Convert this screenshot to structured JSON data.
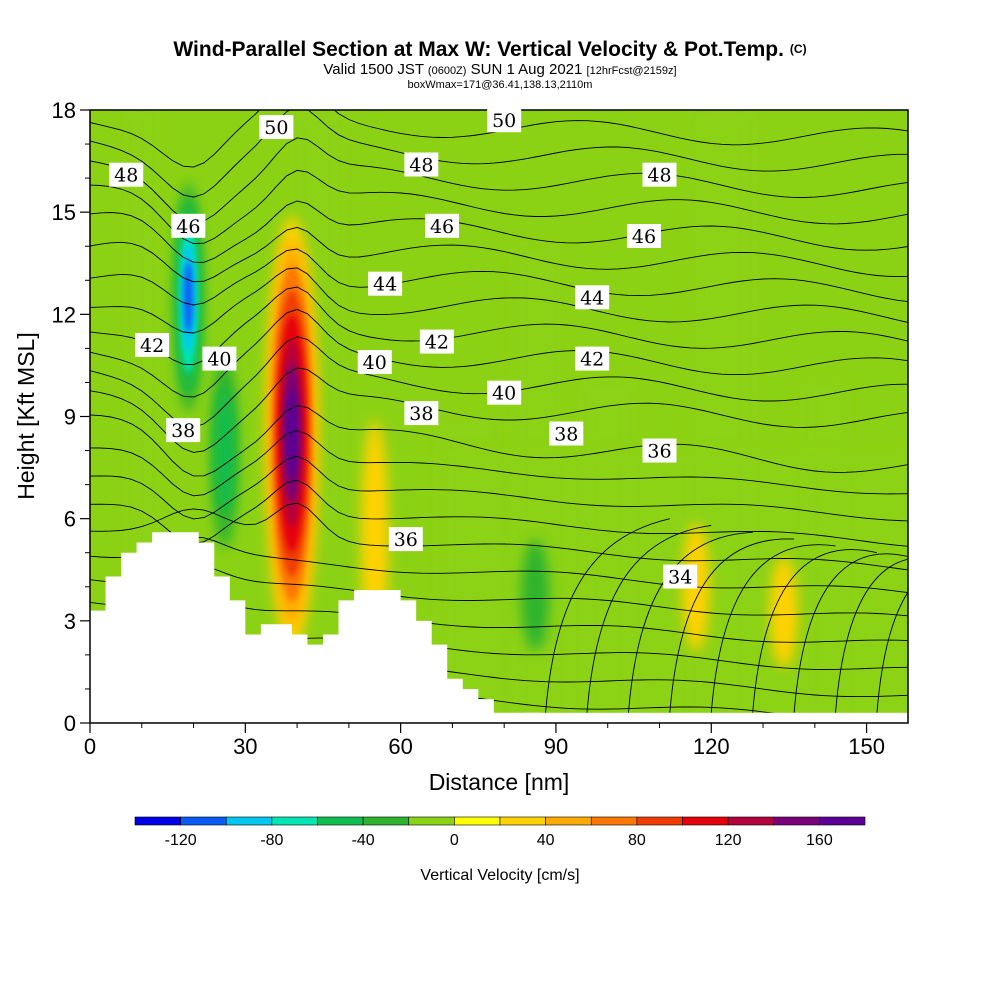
{
  "chart_data": {
    "type": "heatmap",
    "title": "Wind-Parallel Section at Max W: Vertical Velocity & Pot.Temp.",
    "title_mark": "(C)",
    "subtitle_parts": [
      "Valid 1500 JST",
      "(0600Z)",
      "SUN 1 Aug 2021",
      "[12hrFcst@2159z]"
    ],
    "subtitle2": "boxWmax=171@36.41,138.13,2110m",
    "xlabel": "Distance [nm]",
    "ylabel": "Height [Kft MSL]",
    "xlim": [
      0,
      158
    ],
    "ylim": [
      0,
      18
    ],
    "x_ticks": [
      0,
      30,
      60,
      90,
      120,
      150
    ],
    "y_ticks": [
      0,
      3,
      6,
      9,
      12,
      15,
      18
    ],
    "colorbar": {
      "label": "Vertical Velocity [cm/s]",
      "tick_values": [
        -120,
        -80,
        -40,
        0,
        40,
        80,
        120,
        160
      ],
      "bounds": [
        -140,
        -120,
        -100,
        -80,
        -60,
        -40,
        -20,
        0,
        20,
        40,
        60,
        80,
        100,
        120,
        140,
        160,
        180
      ],
      "colors": [
        "#0000e6",
        "#0a5af5",
        "#00c8f0",
        "#00e6b4",
        "#10be50",
        "#2db42d",
        "#8cd214",
        "#ffff00",
        "#ffd200",
        "#ffaa00",
        "#ff7800",
        "#f03c00",
        "#e6000a",
        "#b4003c",
        "#780078",
        "#5a0096"
      ]
    },
    "background_level": "0 to 20",
    "velocity_features": [
      {
        "name": "downdraft",
        "center_x": 19,
        "center_y_range": [
          10,
          15
        ],
        "peak": -120
      },
      {
        "name": "secondary downdraft",
        "center_x": 26,
        "center_y_range": [
          6,
          10
        ],
        "peak": -60
      },
      {
        "name": "main updraft",
        "center_x": 39,
        "center_y_range": [
          3,
          14
        ],
        "peak": 171
      },
      {
        "name": "updraft shoulder",
        "center_x": 55,
        "center_y_range": [
          3,
          8
        ],
        "peak": 40
      },
      {
        "name": "weak sink",
        "center_x": 86,
        "center_y_range": [
          3,
          4.5
        ],
        "peak": -40
      },
      {
        "name": "weak lift",
        "center_x": 117,
        "center_y_range": [
          3,
          5
        ],
        "peak": 40
      },
      {
        "name": "weak lift",
        "center_x": 134,
        "center_y_range": [
          2.5,
          4
        ],
        "peak": 40
      }
    ],
    "theta_contours": {
      "levels_labeled": [
        34,
        36,
        38,
        40,
        42,
        44,
        46,
        48,
        50
      ],
      "labels": [
        {
          "text": "48",
          "x": 7,
          "y": 16.1
        },
        {
          "text": "50",
          "x": 36,
          "y": 17.5
        },
        {
          "text": "50",
          "x": 80,
          "y": 17.7
        },
        {
          "text": "48",
          "x": 64,
          "y": 16.4
        },
        {
          "text": "48",
          "x": 110,
          "y": 16.1
        },
        {
          "text": "46",
          "x": 19,
          "y": 14.6
        },
        {
          "text": "46",
          "x": 68,
          "y": 14.6
        },
        {
          "text": "46",
          "x": 107,
          "y": 14.3
        },
        {
          "text": "44",
          "x": 57,
          "y": 12.9
        },
        {
          "text": "44",
          "x": 97,
          "y": 12.5
        },
        {
          "text": "42",
          "x": 12,
          "y": 11.1
        },
        {
          "text": "42",
          "x": 67,
          "y": 11.2
        },
        {
          "text": "42",
          "x": 97,
          "y": 10.7
        },
        {
          "text": "40",
          "x": 25,
          "y": 10.7
        },
        {
          "text": "40",
          "x": 55,
          "y": 10.6
        },
        {
          "text": "40",
          "x": 80,
          "y": 9.7
        },
        {
          "text": "38",
          "x": 18,
          "y": 8.6
        },
        {
          "text": "38",
          "x": 64,
          "y": 9.1
        },
        {
          "text": "38",
          "x": 92,
          "y": 8.5
        },
        {
          "text": "36",
          "x": 110,
          "y": 8.0
        },
        {
          "text": "36",
          "x": 61,
          "y": 5.4
        },
        {
          "text": "34",
          "x": 114,
          "y": 4.3
        }
      ]
    },
    "terrain_kft": [
      3.3,
      4.3,
      5.0,
      5.3,
      5.6,
      5.6,
      5.6,
      5.3,
      4.3,
      3.6,
      2.6,
      2.9,
      2.9,
      2.6,
      2.3,
      2.6,
      3.6,
      3.9,
      3.9,
      3.9,
      3.6,
      3.0,
      2.3,
      1.3,
      1.0,
      0.7,
      0.3,
      0.3,
      0.3
    ],
    "terrain_x_nm": [
      0,
      3,
      6,
      9,
      12,
      15,
      18,
      21,
      24,
      27,
      30,
      33,
      36,
      39,
      42,
      45,
      48,
      51,
      54,
      57,
      60,
      63,
      66,
      69,
      72,
      75,
      78,
      81,
      84
    ]
  }
}
